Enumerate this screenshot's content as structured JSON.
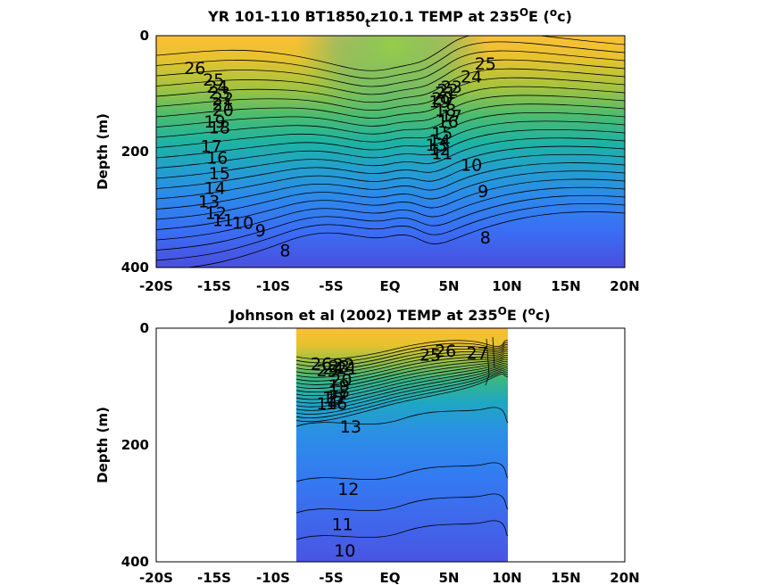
{
  "chart_data": [
    {
      "type": "contour",
      "title_main": "YR 101-110 BT1850",
      "title_sub": "t",
      "title_tail": "z10.1 TEMP at 235",
      "title_sup1": "O",
      "title_mid": "E (",
      "title_sup2": "o",
      "title_end": "c)",
      "ylabel": "Depth (m)",
      "xlim": [
        -20,
        20
      ],
      "ylim": [
        400,
        0
      ],
      "y_ticks": [
        "0",
        "200",
        "400"
      ],
      "x_tick_labels": [
        "-20S",
        "-15S",
        "-10S",
        "-5S",
        "EQ",
        "5N",
        "10N",
        "15N",
        "20N"
      ],
      "data_extent_x": [
        -20,
        20
      ],
      "contour_labels": [
        {
          "text": "26",
          "x": -16.7,
          "y": 55
        },
        {
          "text": "25",
          "x": -15.1,
          "y": 75
        },
        {
          "text": "24",
          "x": -14.8,
          "y": 88
        },
        {
          "text": "23",
          "x": -14.6,
          "y": 98
        },
        {
          "text": "22",
          "x": -14.3,
          "y": 108
        },
        {
          "text": "21",
          "x": -14.3,
          "y": 118
        },
        {
          "text": "20",
          "x": -14.3,
          "y": 128
        },
        {
          "text": "19",
          "x": -15.0,
          "y": 148
        },
        {
          "text": "18",
          "x": -14.6,
          "y": 158
        },
        {
          "text": "17",
          "x": -15.3,
          "y": 190
        },
        {
          "text": "16",
          "x": -14.8,
          "y": 210
        },
        {
          "text": "15",
          "x": -14.6,
          "y": 237
        },
        {
          "text": "14",
          "x": -15.0,
          "y": 262
        },
        {
          "text": "13",
          "x": -15.5,
          "y": 285
        },
        {
          "text": "12",
          "x": -14.9,
          "y": 305
        },
        {
          "text": "11",
          "x": -14.3,
          "y": 318
        },
        {
          "text": "10",
          "x": -12.6,
          "y": 322
        },
        {
          "text": "9",
          "x": -11.1,
          "y": 335
        },
        {
          "text": "8",
          "x": -9.0,
          "y": 370
        },
        {
          "text": "25",
          "x": 8.1,
          "y": 48
        },
        {
          "text": "24",
          "x": 6.9,
          "y": 70
        },
        {
          "text": "23",
          "x": 5.2,
          "y": 88
        },
        {
          "text": "22",
          "x": 4.9,
          "y": 93
        },
        {
          "text": "21",
          "x": 4.7,
          "y": 98
        },
        {
          "text": "20",
          "x": 4.4,
          "y": 108
        },
        {
          "text": "19",
          "x": 4.2,
          "y": 113
        },
        {
          "text": "18",
          "x": 4.7,
          "y": 128
        },
        {
          "text": "17",
          "x": 5.2,
          "y": 138
        },
        {
          "text": "16",
          "x": 4.9,
          "y": 148
        },
        {
          "text": "15",
          "x": 4.4,
          "y": 168
        },
        {
          "text": "14",
          "x": 4.2,
          "y": 180
        },
        {
          "text": "13",
          "x": 3.9,
          "y": 188
        },
        {
          "text": "12",
          "x": 4.2,
          "y": 195
        },
        {
          "text": "11",
          "x": 4.4,
          "y": 202
        },
        {
          "text": "10",
          "x": 6.9,
          "y": 222
        },
        {
          "text": "9",
          "x": 7.9,
          "y": 268
        },
        {
          "text": "8",
          "x": 8.1,
          "y": 348
        }
      ]
    },
    {
      "type": "contour",
      "title_main": "Johnson et al (2002) TEMP at 235",
      "title_sup1": "O",
      "title_mid": "E (",
      "title_sup2": "o",
      "title_end": "c)",
      "ylabel": "Depth (m)",
      "xlim": [
        -20,
        20
      ],
      "ylim": [
        400,
        0
      ],
      "y_ticks": [
        "0",
        "200",
        "400"
      ],
      "x_tick_labels": [
        "-20S",
        "-15S",
        "-10S",
        "-5S",
        "EQ",
        "5N",
        "10N",
        "15N",
        "20N"
      ],
      "data_extent_x": [
        -8,
        10
      ],
      "contour_labels": [
        {
          "text": "26",
          "x": -5.9,
          "y": 60
        },
        {
          "text": "25",
          "x": -5.4,
          "y": 72
        },
        {
          "text": "24",
          "x": -4.9,
          "y": 68
        },
        {
          "text": "23",
          "x": -4.4,
          "y": 65
        },
        {
          "text": "22",
          "x": -4.0,
          "y": 62
        },
        {
          "text": "21",
          "x": -3.7,
          "y": 68
        },
        {
          "text": "20",
          "x": -4.2,
          "y": 88
        },
        {
          "text": "19",
          "x": -4.4,
          "y": 98
        },
        {
          "text": "18",
          "x": -4.4,
          "y": 108
        },
        {
          "text": "17",
          "x": -4.6,
          "y": 118
        },
        {
          "text": "16",
          "x": -4.6,
          "y": 128
        },
        {
          "text": "15",
          "x": -4.9,
          "y": 118
        },
        {
          "text": "14",
          "x": -5.4,
          "y": 128
        },
        {
          "text": "13",
          "x": -3.4,
          "y": 168
        },
        {
          "text": "12",
          "x": -3.6,
          "y": 275
        },
        {
          "text": "11",
          "x": -4.1,
          "y": 335
        },
        {
          "text": "10",
          "x": -3.9,
          "y": 380
        },
        {
          "text": "25",
          "x": 3.4,
          "y": 45
        },
        {
          "text": "26",
          "x": 4.7,
          "y": 38
        },
        {
          "text": "27",
          "x": 7.4,
          "y": 42
        }
      ]
    }
  ]
}
